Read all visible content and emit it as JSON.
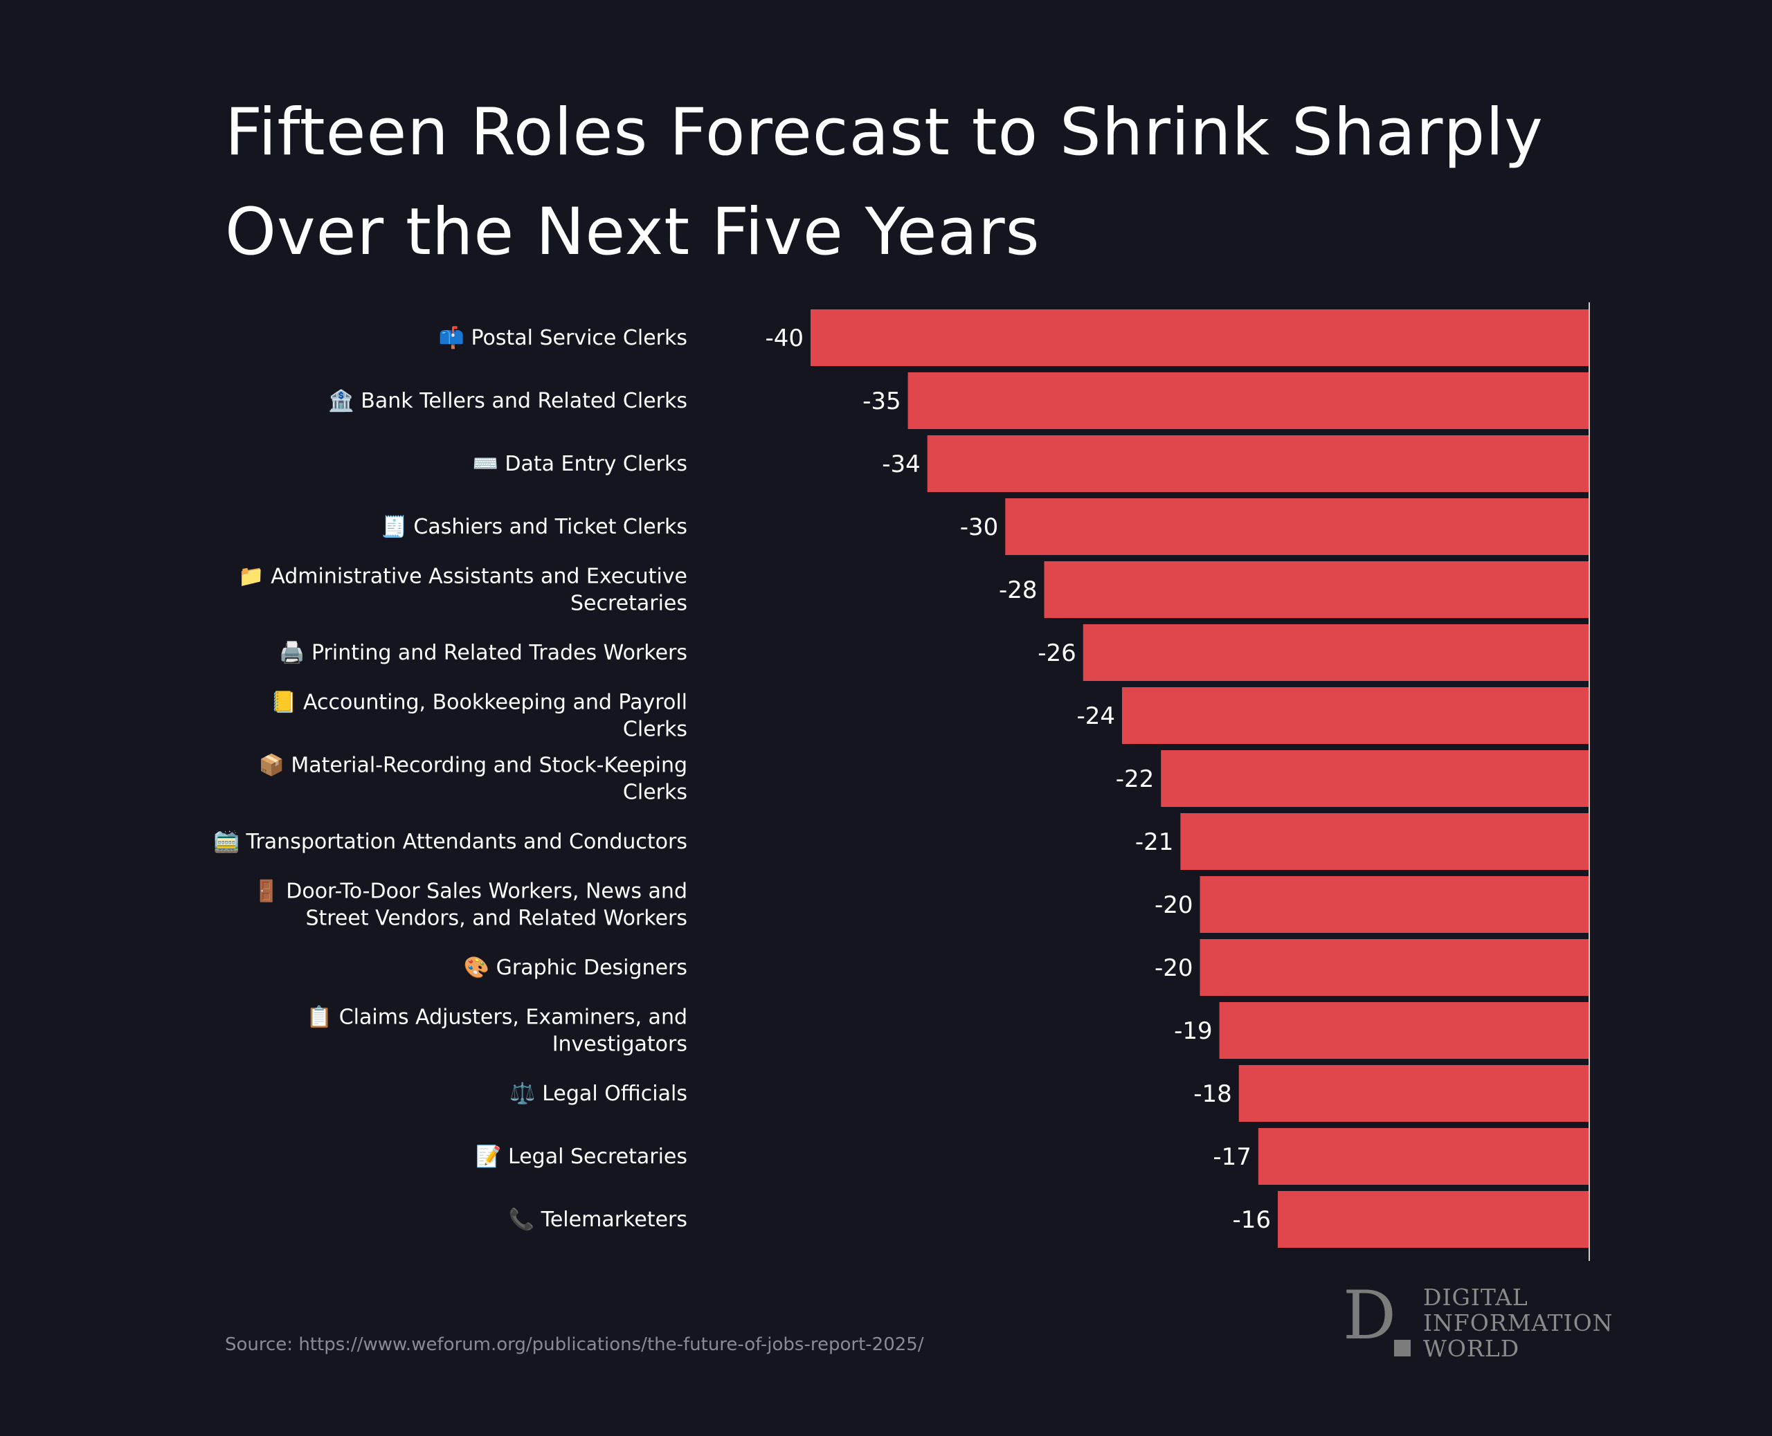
{
  "title_lines": [
    "Fifteen Roles Forecast to Shrink Sharply",
    "Over the Next Five Years"
  ],
  "source": "Source: https://www.weforum.org/publications/the-future-of-jobs-report-2025/",
  "logo": {
    "lines": [
      "DIGITAL",
      "INFORMATION",
      "WORLD"
    ],
    "mark": "D"
  },
  "colors": {
    "background": "#15151f",
    "bar": "#e0474c",
    "axis": "#cccccc"
  },
  "chart_data": {
    "type": "bar",
    "orientation": "horizontal",
    "title": "Fifteen Roles Forecast to Shrink Sharply Over the Next Five Years",
    "xlabel": "",
    "ylabel": "",
    "xlim": [
      -40,
      0
    ],
    "grid": false,
    "categories": [
      {
        "icon": "📫",
        "lines": [
          "Postal Service Clerks"
        ]
      },
      {
        "icon": "🏦",
        "lines": [
          "Bank Tellers and Related Clerks"
        ]
      },
      {
        "icon": "⌨️",
        "lines": [
          "Data Entry Clerks"
        ]
      },
      {
        "icon": "🧾",
        "lines": [
          "Cashiers and Ticket Clerks"
        ]
      },
      {
        "icon": "📁",
        "lines": [
          "Administrative Assistants and Executive",
          "Secretaries"
        ]
      },
      {
        "icon": "🖨️",
        "lines": [
          "Printing and Related Trades Workers"
        ]
      },
      {
        "icon": "📒",
        "lines": [
          "Accounting, Bookkeeping and Payroll",
          "Clerks"
        ]
      },
      {
        "icon": "📦",
        "lines": [
          "Material-Recording and Stock-Keeping",
          "Clerks"
        ]
      },
      {
        "icon": "🚞",
        "lines": [
          "Transportation Attendants and Conductors"
        ]
      },
      {
        "icon": "🚪",
        "lines": [
          "Door-To-Door Sales Workers, News and",
          "Street Vendors, and Related Workers"
        ]
      },
      {
        "icon": "🎨",
        "lines": [
          "Graphic Designers"
        ]
      },
      {
        "icon": "📋",
        "lines": [
          "Claims Adjusters, Examiners, and",
          "Investigators"
        ]
      },
      {
        "icon": "⚖️",
        "lines": [
          "Legal Officials"
        ]
      },
      {
        "icon": "📝",
        "lines": [
          "Legal Secretaries"
        ]
      },
      {
        "icon": "📞",
        "lines": [
          "Telemarketers"
        ]
      }
    ],
    "values": [
      -40,
      -35,
      -34,
      -30,
      -28,
      -26,
      -24,
      -22,
      -21,
      -20,
      -20,
      -19,
      -18,
      -17,
      -16
    ],
    "value_labels": [
      "-40",
      "-35",
      "-34",
      "-30",
      "-28",
      "-26",
      "-24",
      "-22",
      "-21",
      "-20",
      "-20",
      "-19",
      "-18",
      "-17",
      "-16"
    ]
  }
}
